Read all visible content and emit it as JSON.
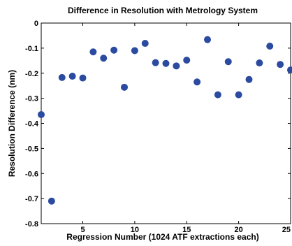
{
  "chart_data": {
    "type": "scatter",
    "title": "Difference in Resolution with Metrology System",
    "xlabel": "Regression Number (1024 ATF extractions each)",
    "ylabel": "Resolution Difference (nm)",
    "xlim": [
      1,
      25
    ],
    "ylim": [
      -0.8,
      0
    ],
    "x_ticks": [
      5,
      10,
      15,
      20,
      25
    ],
    "y_ticks": [
      0,
      -0.1,
      -0.2,
      -0.3,
      -0.4,
      -0.5,
      -0.6,
      -0.7,
      -0.8
    ],
    "x_tick_labels": [
      "5",
      "10",
      "15",
      "20",
      "25"
    ],
    "y_tick_labels": [
      "0",
      "-0.1",
      "-0.2",
      "-0.3",
      "-0.4",
      "-0.5",
      "-0.6",
      "-0.7",
      "-0.8"
    ],
    "grid": false,
    "marker_color": "#2b4ba1",
    "series": [
      {
        "x": [
          1,
          2,
          3,
          4,
          5,
          6,
          7,
          8,
          9,
          10,
          11,
          12,
          13,
          14,
          15,
          16,
          17,
          18,
          19,
          20,
          21,
          22,
          23,
          24,
          25
        ],
        "y": [
          -0.365,
          -0.71,
          -0.217,
          -0.212,
          -0.219,
          -0.115,
          -0.14,
          -0.108,
          -0.256,
          -0.11,
          -0.081,
          -0.158,
          -0.161,
          -0.171,
          -0.148,
          -0.235,
          -0.066,
          -0.286,
          -0.154,
          -0.286,
          -0.225,
          -0.159,
          -0.092,
          -0.165,
          -0.187
        ]
      }
    ]
  }
}
